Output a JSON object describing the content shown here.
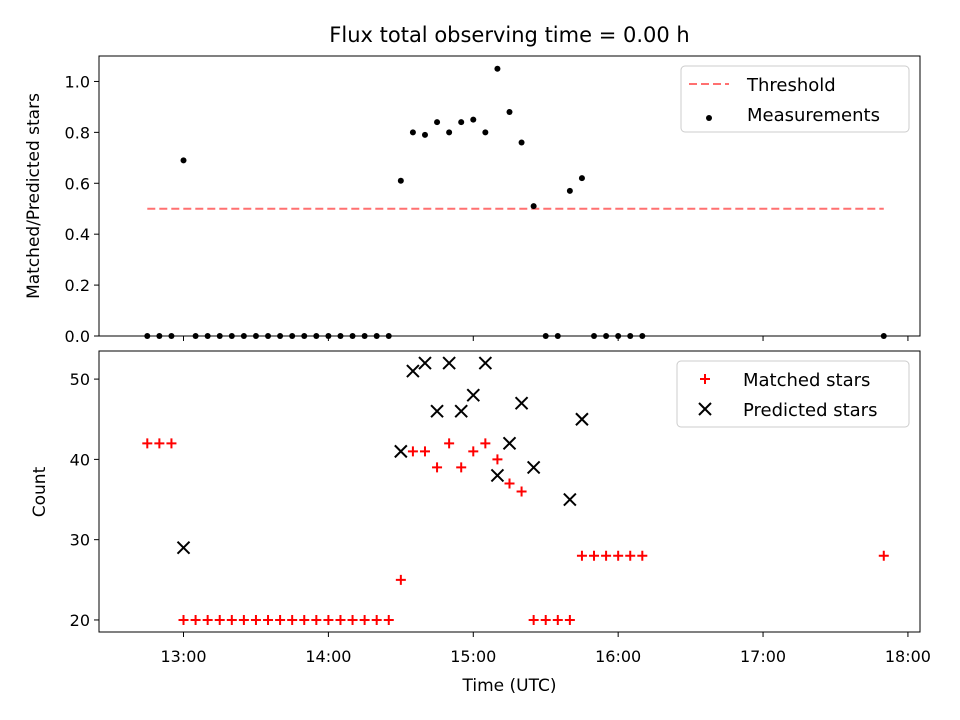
{
  "chart_data": [
    {
      "type": "scatter",
      "title": "Flux total observing time = 0.00 h",
      "xlabel": "",
      "ylabel": "Matched/Predicted stars",
      "ylim": [
        0,
        1.1
      ],
      "yticks": [
        "0.0",
        "0.2",
        "0.4",
        "0.6",
        "0.8",
        "1.0"
      ],
      "xlim": [
        "12:25",
        "18:05"
      ],
      "grid": false,
      "legend": {
        "placement": "top-right",
        "entries": [
          "Threshold",
          "Measurements"
        ]
      },
      "series": [
        {
          "name": "Threshold",
          "style": "dashed-line",
          "color": "#ff7070",
          "x": [
            "12:45",
            "17:50"
          ],
          "y": [
            0.5,
            0.5
          ]
        },
        {
          "name": "Measurements",
          "style": "dot",
          "color": "#000000",
          "x": [
            "12:45",
            "12:50",
            "12:55",
            "13:00",
            "13:05",
            "13:10",
            "13:15",
            "13:20",
            "13:25",
            "13:30",
            "13:35",
            "13:40",
            "13:45",
            "13:50",
            "13:55",
            "14:00",
            "14:05",
            "14:10",
            "14:15",
            "14:20",
            "14:25",
            "14:30",
            "14:35",
            "14:40",
            "14:45",
            "14:50",
            "14:55",
            "15:00",
            "15:05",
            "15:10",
            "15:15",
            "15:20",
            "15:25",
            "15:30",
            "15:35",
            "15:40",
            "15:45",
            "15:50",
            "15:55",
            "16:00",
            "16:05",
            "16:10",
            "17:50"
          ],
          "y": [
            0,
            0,
            0,
            0.69,
            0,
            0,
            0,
            0,
            0,
            0,
            0,
            0,
            0,
            0,
            0,
            0,
            0,
            0,
            0,
            0,
            0,
            0.61,
            0.8,
            0.79,
            0.84,
            0.8,
            0.84,
            0.85,
            0.8,
            1.05,
            0.88,
            0.76,
            0.51,
            0,
            0,
            0.57,
            0.62,
            0,
            0,
            0,
            0,
            0,
            0
          ]
        }
      ]
    },
    {
      "type": "scatter",
      "title": "",
      "xlabel": "Time (UTC)",
      "ylabel": "Count",
      "ylim": [
        18.5,
        53.5
      ],
      "yticks": [
        "20",
        "30",
        "40",
        "50"
      ],
      "xlim": [
        "12:25",
        "18:05"
      ],
      "xticks": [
        "13:00",
        "14:00",
        "15:00",
        "16:00",
        "17:00",
        "18:00"
      ],
      "grid": false,
      "legend": {
        "placement": "top-right",
        "entries": [
          "Matched stars",
          "Predicted stars"
        ]
      },
      "series": [
        {
          "name": "Matched stars",
          "style": "plus",
          "color": "#ff0000",
          "x": [
            "12:45",
            "12:50",
            "12:55",
            "13:00",
            "13:05",
            "13:10",
            "13:15",
            "13:20",
            "13:25",
            "13:30",
            "13:35",
            "13:40",
            "13:45",
            "13:50",
            "13:55",
            "14:00",
            "14:05",
            "14:10",
            "14:15",
            "14:20",
            "14:25",
            "14:30",
            "14:35",
            "14:40",
            "14:45",
            "14:50",
            "14:55",
            "15:00",
            "15:05",
            "15:10",
            "15:15",
            "15:20",
            "15:25",
            "15:30",
            "15:35",
            "15:40",
            "15:45",
            "15:50",
            "15:55",
            "16:00",
            "16:05",
            "16:10",
            "17:50"
          ],
          "y": [
            42,
            42,
            42,
            20,
            20,
            20,
            20,
            20,
            20,
            20,
            20,
            20,
            20,
            20,
            20,
            20,
            20,
            20,
            20,
            20,
            20,
            25,
            41,
            41,
            39,
            42,
            39,
            41,
            42,
            40,
            37,
            36,
            20,
            20,
            20,
            20,
            28,
            28,
            28,
            28,
            28,
            28,
            28
          ]
        },
        {
          "name": "Predicted stars",
          "style": "x",
          "color": "#000000",
          "x": [
            "13:00",
            "14:30",
            "14:35",
            "14:40",
            "14:45",
            "14:50",
            "14:55",
            "15:00",
            "15:05",
            "15:10",
            "15:15",
            "15:20",
            "15:25",
            "15:40",
            "15:45"
          ],
          "y": [
            29,
            41,
            51,
            52,
            46,
            52,
            46,
            48,
            52,
            38,
            42,
            47,
            39,
            35,
            45
          ]
        }
      ]
    }
  ]
}
